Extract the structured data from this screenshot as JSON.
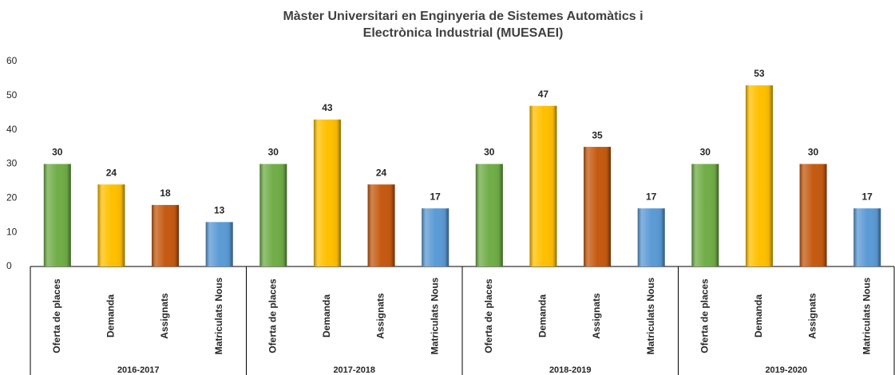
{
  "chart_data": {
    "type": "bar",
    "title": [
      "Màster Universitari en Enginyeria de Sistemes Automàtics i",
      "Electrònica Industrial (MUESAEI)"
    ],
    "categories": [
      "2016-2017",
      "2017-2018",
      "2018-2019",
      "2019-2020"
    ],
    "series": [
      {
        "name": "Oferta de places",
        "color": "#70ad47",
        "values": [
          30,
          30,
          30,
          30
        ]
      },
      {
        "name": "Demanda",
        "color": "#ffc000",
        "values": [
          24,
          43,
          47,
          53
        ]
      },
      {
        "name": "Assignats",
        "color": "#c55a11",
        "values": [
          18,
          24,
          35,
          30
        ]
      },
      {
        "name": "Matriculats Nous",
        "color": "#5b9bd5",
        "values": [
          13,
          17,
          17,
          17
        ]
      }
    ],
    "ylim": [
      0,
      60
    ],
    "yticks": [
      0,
      10,
      20,
      30,
      40,
      50,
      60
    ],
    "grid": false
  }
}
